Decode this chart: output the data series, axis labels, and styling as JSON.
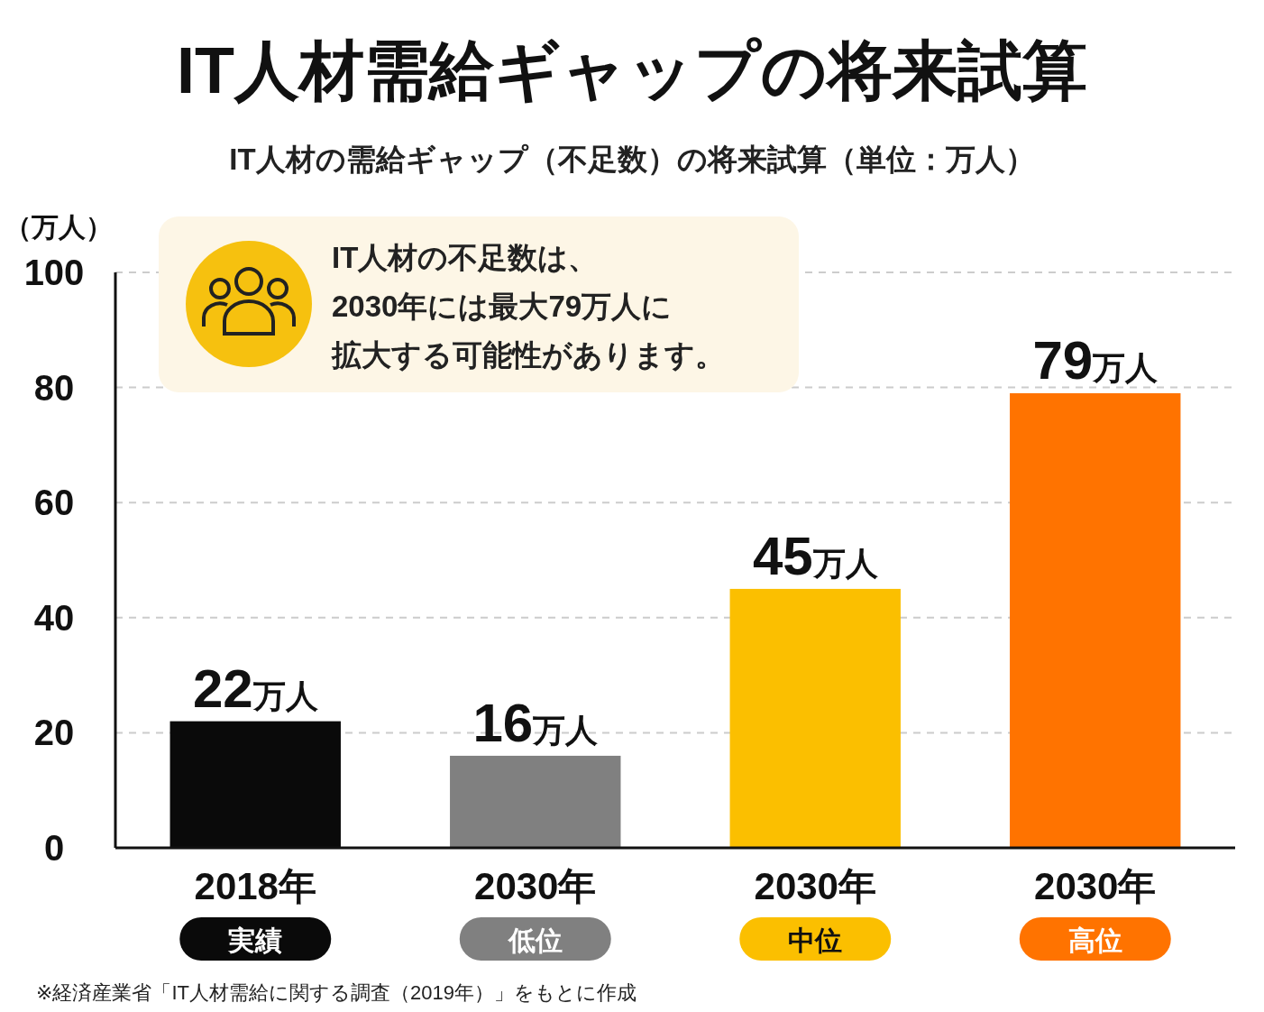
{
  "chart_data": {
    "type": "bar",
    "title": "IT人材需給ギャップの将来試算",
    "subtitle": "IT人材の需給ギャップ（不足数）の将来試算（単位：万人）",
    "ylabel": "（万人）",
    "categories": [
      "2018年実績",
      "2030年低位",
      "2030年中位",
      "2030年高位"
    ],
    "values": [
      22,
      16,
      45,
      79
    ],
    "colors": [
      "#0a0a0a",
      "#808080",
      "#fbbf00",
      "#ff7300"
    ],
    "value_labels": [
      "22万人",
      "16万人",
      "45万人",
      "79万人"
    ],
    "ylim": [
      0,
      100
    ],
    "yticks": [
      0,
      20,
      40,
      60,
      80,
      100
    ],
    "grid": "y",
    "annotations": [
      "IT人材の不足数は、2030年には最大79万人に拡大する可能性があります。",
      "※経済産業省「IT人材需給に関する調査（2019年）」をもとに作成"
    ]
  }
}
